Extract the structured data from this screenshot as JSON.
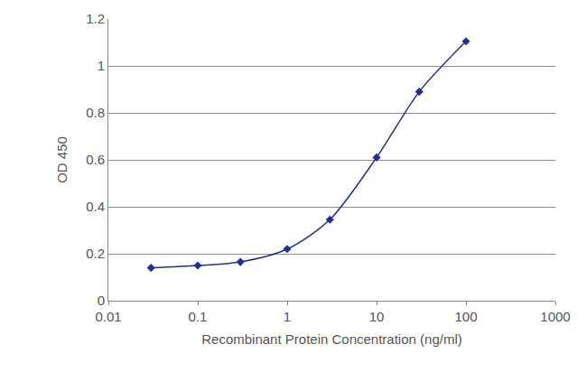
{
  "chart_data": {
    "type": "line",
    "x": [
      0.03,
      0.1,
      0.3,
      1,
      3,
      10,
      30,
      100
    ],
    "values": [
      0.14,
      0.15,
      0.165,
      0.22,
      0.345,
      0.61,
      0.89,
      1.105
    ],
    "color": "#1f2f9a",
    "marker": "diamond",
    "line_style": "solid",
    "log": "x",
    "xlim": [
      0.01,
      1000
    ],
    "xticks": [
      0.01,
      0.1,
      1,
      10,
      100,
      1000
    ],
    "ylim": [
      0,
      1.2
    ],
    "yticks": [
      0,
      0.2,
      0.4,
      0.6,
      0.8,
      1,
      1.2
    ],
    "xlabel": "Recombinant Protein Concentration (ng/ml)",
    "ylabel": "OD 450",
    "grid": true
  }
}
